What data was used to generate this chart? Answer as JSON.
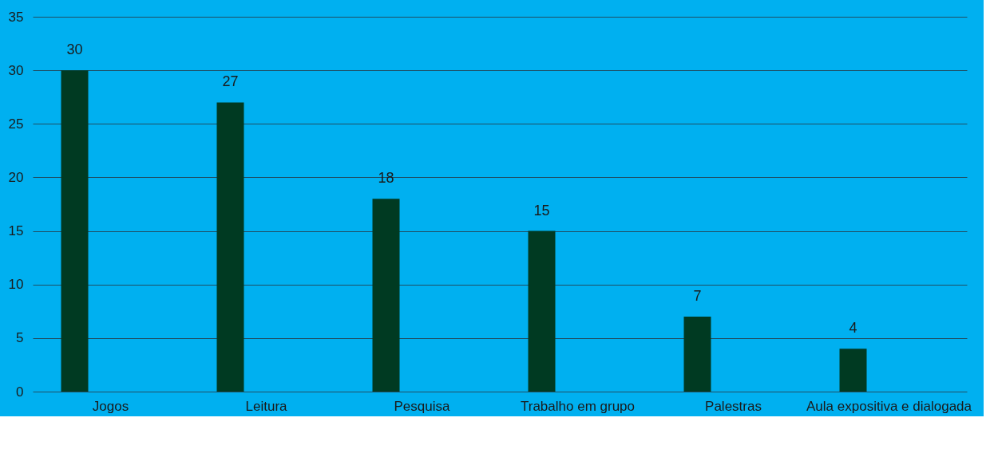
{
  "chart_data": {
    "type": "bar",
    "categories": [
      "Jogos",
      "Leitura",
      "Pesquisa",
      "Trabalho em grupo",
      "Palestras",
      "Aula expositiva e dialogada"
    ],
    "values": [
      30,
      27,
      18,
      15,
      7,
      4
    ],
    "color": "#003a22",
    "ylim": [
      0,
      35
    ],
    "yticks": [
      0,
      5,
      10,
      15,
      20,
      25,
      30,
      35
    ],
    "grid": "y",
    "data_labels": true
  }
}
